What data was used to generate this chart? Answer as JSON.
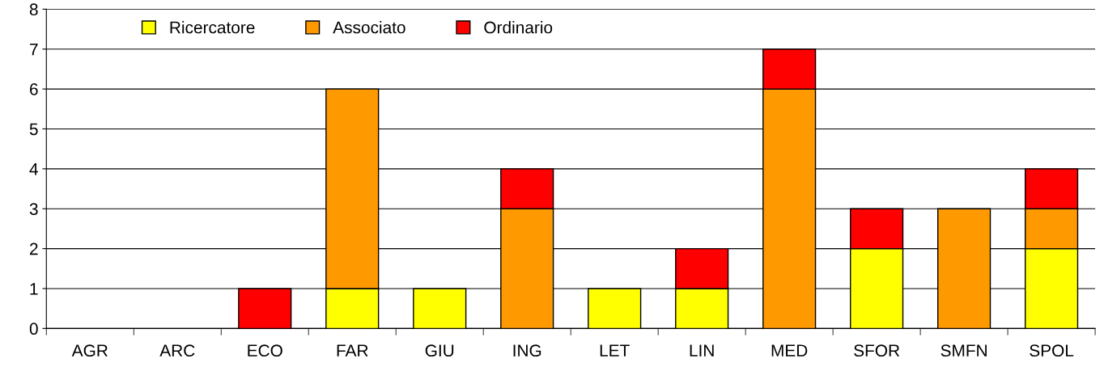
{
  "chart_data": {
    "type": "bar",
    "stacked": true,
    "categories": [
      "AGR",
      "ARC",
      "ECO",
      "FAR",
      "GIU",
      "ING",
      "LET",
      "LIN",
      "MED",
      "SFOR",
      "SMFN",
      "SPOL"
    ],
    "series": [
      {
        "name": "Ricercatore",
        "color": "#ffff00",
        "values": [
          null,
          null,
          null,
          1,
          1,
          null,
          1,
          1,
          null,
          2,
          null,
          2
        ]
      },
      {
        "name": "Associato",
        "color": "#ff9900",
        "values": [
          null,
          null,
          null,
          5,
          null,
          3,
          null,
          null,
          6,
          null,
          3,
          1
        ]
      },
      {
        "name": "Ordinario",
        "color": "#ff0000",
        "values": [
          null,
          null,
          1,
          null,
          null,
          1,
          null,
          1,
          1,
          1,
          null,
          1
        ]
      }
    ],
    "ylim": [
      0,
      8
    ],
    "yticks": [
      0,
      1,
      2,
      3,
      4,
      5,
      6,
      7,
      8
    ],
    "grid": "y",
    "legend": "top left"
  }
}
